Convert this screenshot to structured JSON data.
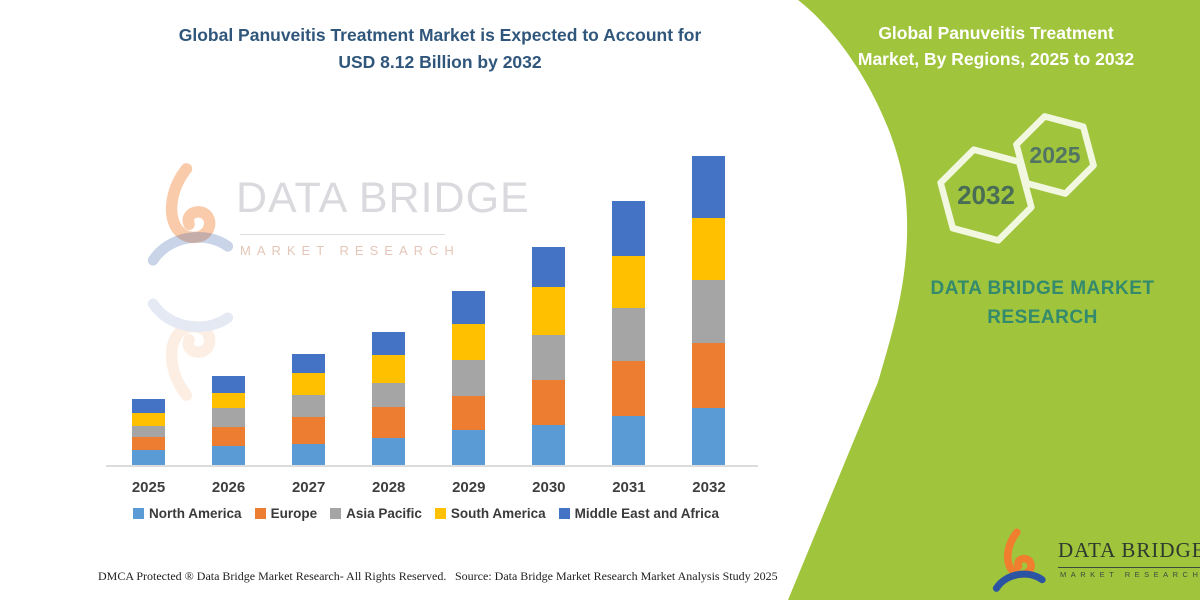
{
  "left_panel": {
    "title_line1": "Global Panuveitis Treatment Market is Expected to Account for",
    "title_line2": "USD 8.12 Billion by 2032",
    "title_color": "#30577B"
  },
  "chart_data": {
    "type": "bar",
    "stacked": true,
    "title": "Global Panuveitis Treatment Market is Expected to Account for USD 8.12 Billion by 2032",
    "xlabel": "",
    "ylabel": "",
    "unit": "USD Billion",
    "ylim": [
      0,
      8.5
    ],
    "gridlines": false,
    "legend_position": "bottom",
    "axis_line_color": "#dcdcdc",
    "categories": [
      "2025",
      "2026",
      "2027",
      "2028",
      "2029",
      "2030",
      "2031",
      "2032"
    ],
    "series": [
      {
        "name": "North America",
        "color": "#5B9BD5",
        "values": [
          0.42,
          0.52,
          0.58,
          0.73,
          0.94,
          1.07,
          1.31,
          1.52
        ]
      },
      {
        "name": "Europe",
        "color": "#ED7D31",
        "values": [
          0.34,
          0.5,
          0.71,
          0.81,
          0.89,
          1.18,
          1.44,
          1.7
        ]
      },
      {
        "name": "Asia Pacific",
        "color": "#A5A5A5",
        "values": [
          0.29,
          0.5,
          0.58,
          0.63,
          0.94,
          1.18,
          1.39,
          1.65
        ]
      },
      {
        "name": "South America",
        "color": "#FFC000",
        "values": [
          0.34,
          0.39,
          0.58,
          0.73,
          0.94,
          1.26,
          1.36,
          1.62
        ]
      },
      {
        "name": "Middle East and Africa",
        "color": "#4472C4",
        "values": [
          0.37,
          0.45,
          0.5,
          0.6,
          0.88,
          1.05,
          1.44,
          1.63
        ]
      }
    ],
    "totals": [
      1.76,
      2.36,
      2.95,
      3.5,
      4.59,
      5.74,
      6.94,
      8.12
    ]
  },
  "watermark": {
    "brand": "DATA BRIDGE",
    "sub": "MARKET RESEARCH"
  },
  "green_panel": {
    "color": "#A0C43C",
    "title_line1": "Global Panuveitis Treatment",
    "title_line2": "Market, By Regions, 2025 to 2032",
    "hexagon_large_year": "2032",
    "hexagon_small_year": "2025",
    "brand_line1": "DATA BRIDGE MARKET",
    "brand_line2": "RESEARCH",
    "brand_color": "#338A6D"
  },
  "footer": {
    "dmca": "DMCA Protected ® Data Bridge Market Research-  All Rights Reserved.",
    "source": "Source: Data Bridge Market Research  Market Analysis Study 2025"
  },
  "footer_logo": {
    "name": "DATA BRIDGE",
    "sub": "MARKET RESEARCH"
  }
}
